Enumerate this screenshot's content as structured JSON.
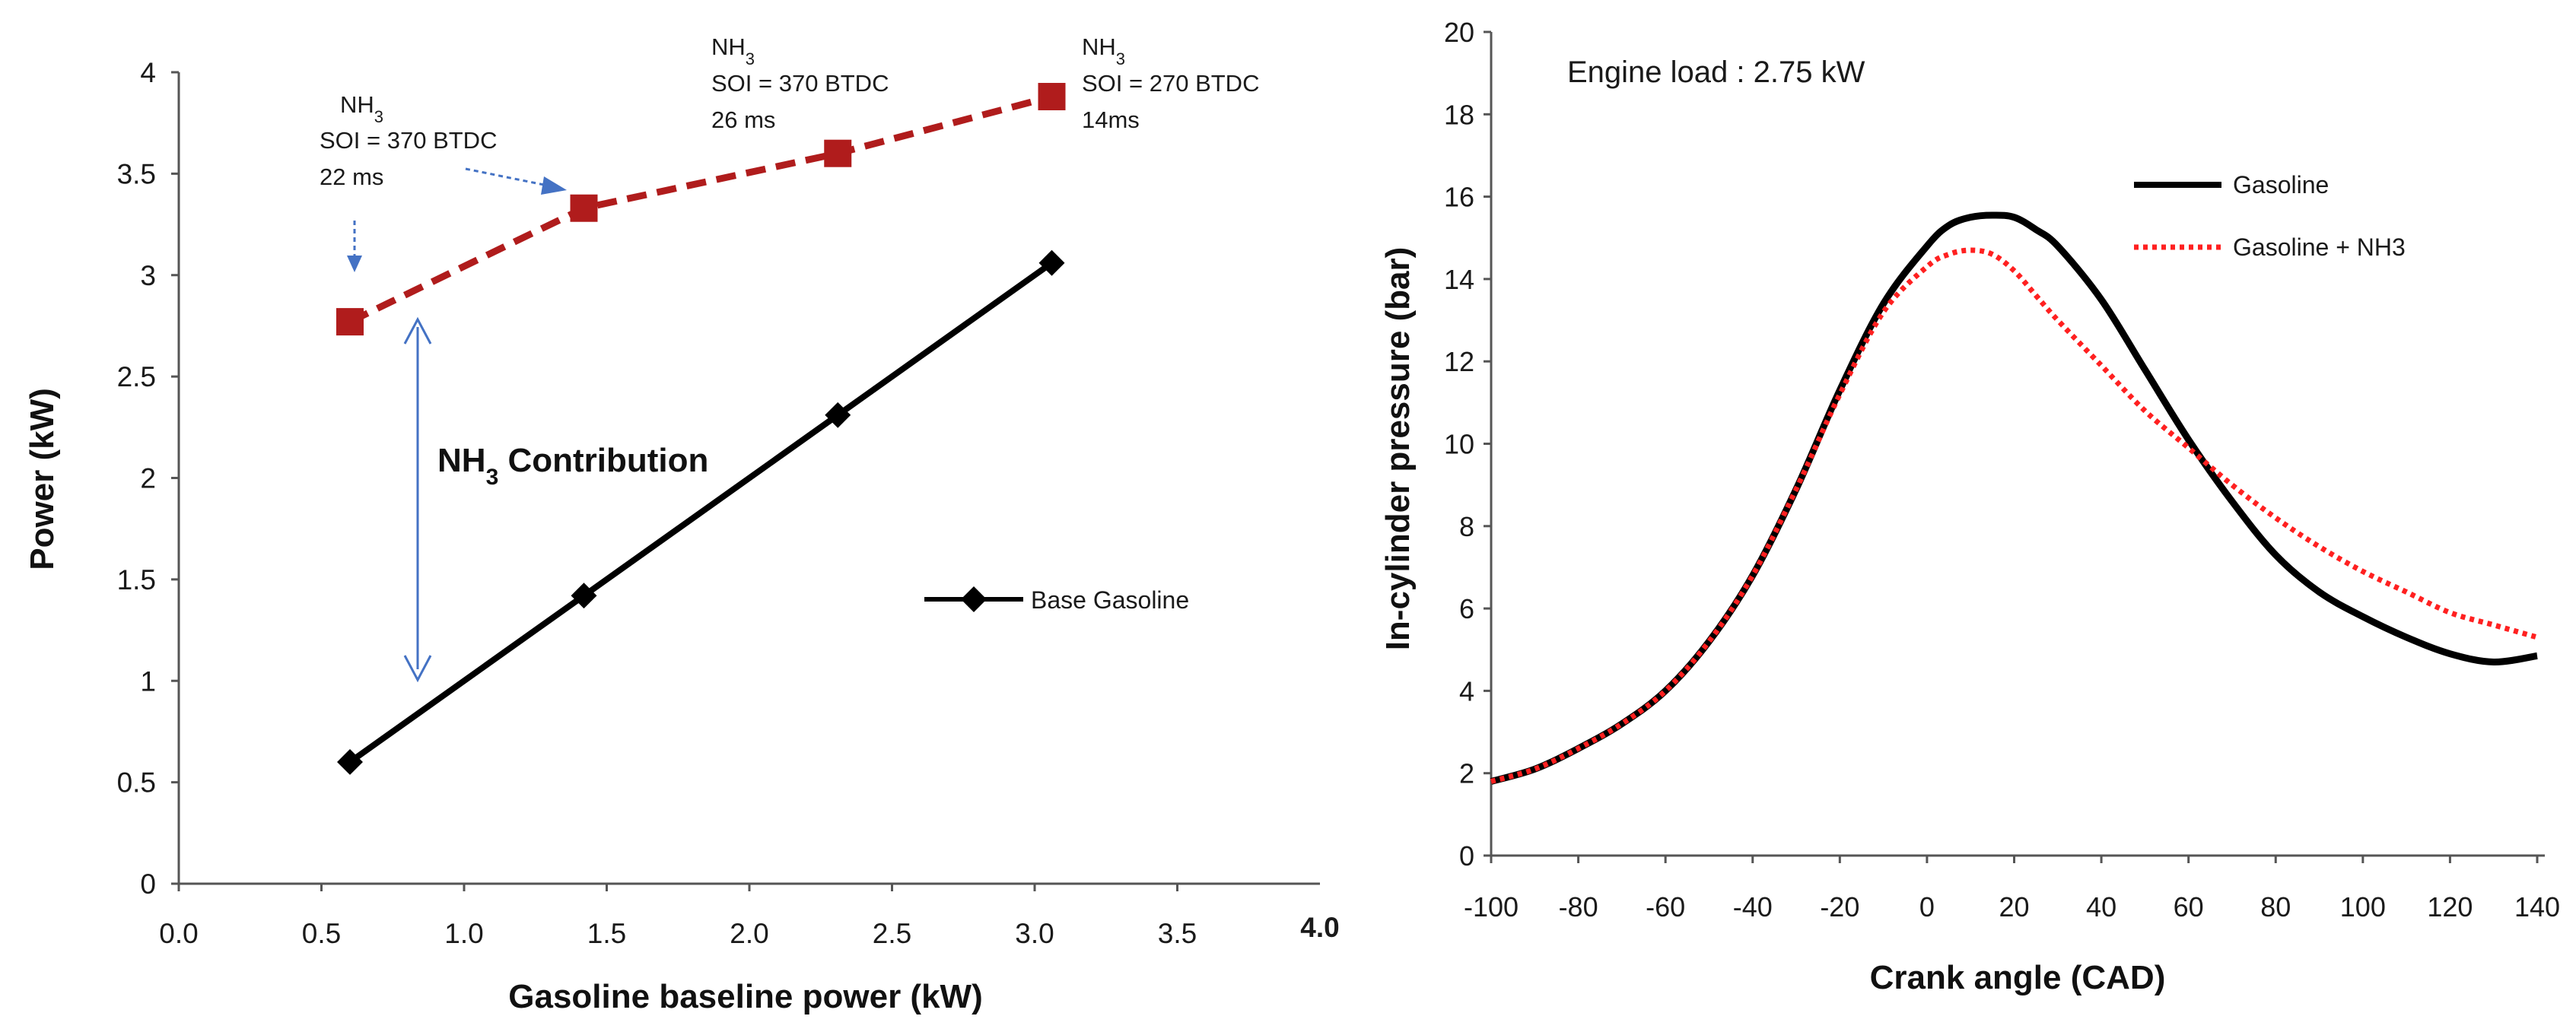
{
  "chart_data": [
    {
      "type": "line",
      "title": "",
      "xlabel": "Gasoline baseline power (kW)",
      "ylabel": "Power (kW)",
      "xlim": [
        0,
        4
      ],
      "ylim": [
        0,
        4
      ],
      "x_ticks": [
        "0.0",
        "0.5",
        "1.0",
        "1.5",
        "2.0",
        "2.5",
        "3.0",
        "3.5",
        "4.0"
      ],
      "y_ticks": [
        "0",
        "0.5",
        "1",
        "1.5",
        "2",
        "2.5",
        "3",
        "3.5",
        "4"
      ],
      "grid": false,
      "legend": {
        "placement": "right",
        "entries": [
          "Base Gasoline"
        ]
      },
      "series": [
        {
          "name": "Base Gasoline",
          "color": "#000000",
          "style": "solid-diamond",
          "points": [
            [
              0.6,
              0.6
            ],
            [
              1.42,
              1.42
            ],
            [
              2.31,
              2.31
            ],
            [
              3.06,
              3.06
            ]
          ]
        },
        {
          "name": "NH3",
          "color": "#b01c1c",
          "style": "dashed-square",
          "points": [
            [
              0.6,
              2.77
            ],
            [
              1.42,
              3.33
            ],
            [
              2.31,
              3.6
            ],
            [
              3.06,
              3.88
            ]
          ]
        }
      ],
      "annotations": {
        "a1": {
          "l1": "NH",
          "sub": "3",
          "l2": "SOI = 370 BTDC",
          "l3": "22 ms"
        },
        "a2": {
          "l1": "NH",
          "sub": "3",
          "l2": "SOI = 370 BTDC",
          "l3": "26 ms"
        },
        "a3": {
          "l1": "NH",
          "sub": "3",
          "l2": "SOI = 270 BTDC",
          "l3": "14ms"
        },
        "contribution": {
          "main": "NH",
          "sub": "3",
          "rest": " Contribution"
        }
      },
      "arrow_color": "#4472c4"
    },
    {
      "type": "line",
      "title": "Engine load : 2.75 kW",
      "xlabel": "Crank angle (CAD)",
      "ylabel": "In-cylinder pressure (bar)",
      "xlim": [
        -100,
        140
      ],
      "ylim": [
        0,
        20
      ],
      "x_ticks": [
        "-100",
        "-80",
        "-60",
        "-40",
        "-20",
        "0",
        "20",
        "40",
        "60",
        "80",
        "100",
        "120",
        "140"
      ],
      "y_ticks": [
        "0",
        "2",
        "4",
        "6",
        "8",
        "10",
        "12",
        "14",
        "16",
        "18",
        "20"
      ],
      "grid": false,
      "legend": {
        "placement": "top-right",
        "entries": [
          "Gasoline",
          "Gasoline + NH3"
        ]
      },
      "series": [
        {
          "name": "Gasoline",
          "color": "#000000",
          "style": "solid",
          "x": [
            -100,
            -90,
            -80,
            -70,
            -60,
            -50,
            -40,
            -30,
            -20,
            -10,
            0,
            5,
            10,
            15,
            20,
            25,
            30,
            40,
            50,
            60,
            70,
            80,
            90,
            100,
            110,
            120,
            130,
            140
          ],
          "y": [
            1.8,
            2.1,
            2.6,
            3.2,
            4.0,
            5.2,
            6.8,
            8.9,
            11.3,
            13.4,
            14.8,
            15.3,
            15.5,
            15.55,
            15.5,
            15.2,
            14.8,
            13.5,
            11.8,
            10.1,
            8.6,
            7.3,
            6.4,
            5.8,
            5.3,
            4.9,
            4.7,
            4.85
          ]
        },
        {
          "name": "Gasoline + NH3",
          "color": "#ff2020",
          "style": "dotted",
          "x": [
            -100,
            -90,
            -80,
            -70,
            -60,
            -50,
            -40,
            -30,
            -20,
            -10,
            0,
            5,
            10,
            15,
            20,
            25,
            30,
            40,
            50,
            60,
            70,
            80,
            90,
            100,
            110,
            120,
            130,
            140
          ],
          "y": [
            1.8,
            2.1,
            2.6,
            3.2,
            4.0,
            5.2,
            6.8,
            8.9,
            11.2,
            13.2,
            14.3,
            14.6,
            14.7,
            14.6,
            14.2,
            13.6,
            13.0,
            11.9,
            10.8,
            9.9,
            9.0,
            8.2,
            7.5,
            6.9,
            6.4,
            5.9,
            5.6,
            5.3
          ]
        }
      ]
    }
  ]
}
